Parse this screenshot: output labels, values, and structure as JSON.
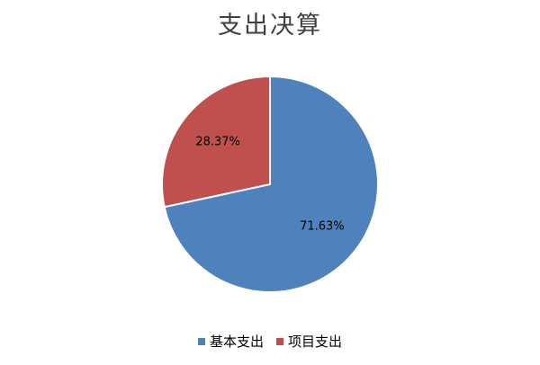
{
  "chart_data": {
    "type": "pie",
    "title": "支出决算",
    "categories": [
      "基本支出",
      "项目支出"
    ],
    "values": [
      71.63,
      28.37
    ],
    "data_labels": [
      "71.63%",
      "28.37%"
    ],
    "colors": [
      "#4F81BD",
      "#C0504D"
    ],
    "legend_position": "bottom"
  }
}
